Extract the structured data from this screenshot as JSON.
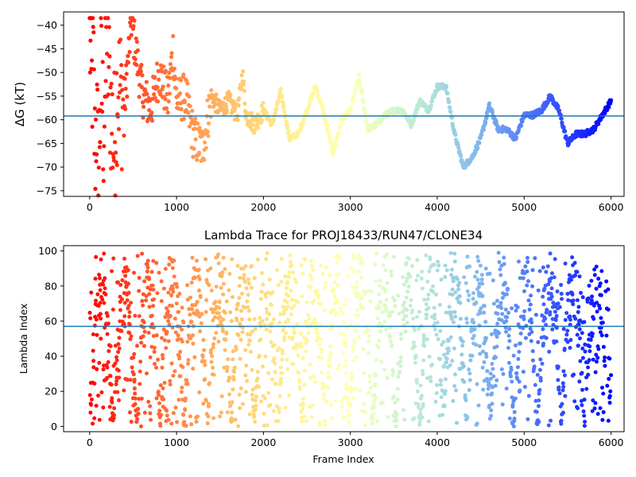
{
  "chart_data": [
    {
      "type": "scatter",
      "title": "",
      "xlabel": "",
      "ylabel": "ΔG (kT)",
      "xlim": [
        -300,
        6150
      ],
      "ylim": [
        -76.2,
        -37.2
      ],
      "xticks": [
        0,
        1000,
        2000,
        3000,
        4000,
        5000,
        6000
      ],
      "yticks": [
        -40,
        -45,
        -50,
        -55,
        -60,
        -65,
        -70,
        -75
      ],
      "hline": -59.2,
      "hline_color": "#1f77b4",
      "colormap": "rainbow (reversed: red at frame 0, violet at frame 6000)",
      "points_approx": [
        [
          0,
          -40
        ],
        [
          20,
          -55
        ],
        [
          40,
          -47
        ],
        [
          60,
          -67
        ],
        [
          80,
          -58
        ],
        [
          100,
          -73
        ],
        [
          130,
          -50
        ],
        [
          160,
          -62
        ],
        [
          200,
          -44
        ],
        [
          240,
          -56
        ],
        [
          280,
          -66
        ],
        [
          320,
          -52
        ],
        [
          400,
          -57
        ],
        [
          480,
          -39
        ],
        [
          600,
          -54
        ],
        [
          700,
          -58
        ],
        [
          800,
          -50
        ],
        [
          900,
          -56
        ],
        [
          960,
          -45
        ],
        [
          1000,
          -56
        ],
        [
          1100,
          -55
        ],
        [
          1200,
          -64
        ],
        [
          1300,
          -66
        ],
        [
          1400,
          -55
        ],
        [
          1500,
          -58
        ],
        [
          1600,
          -56
        ],
        [
          1700,
          -59
        ],
        [
          1760,
          -50
        ],
        [
          1800,
          -59
        ],
        [
          1900,
          -61
        ],
        [
          2000,
          -58
        ],
        [
          2100,
          -61
        ],
        [
          2200,
          -54
        ],
        [
          2300,
          -64
        ],
        [
          2400,
          -63
        ],
        [
          2500,
          -58
        ],
        [
          2600,
          -53
        ],
        [
          2700,
          -59
        ],
        [
          2800,
          -67
        ],
        [
          2900,
          -60
        ],
        [
          3000,
          -58
        ],
        [
          3100,
          -51
        ],
        [
          3200,
          -62
        ],
        [
          3300,
          -61
        ],
        [
          3400,
          -59
        ],
        [
          3500,
          -58
        ],
        [
          3600,
          -58
        ],
        [
          3700,
          -61
        ],
        [
          3800,
          -56
        ],
        [
          3900,
          -58
        ],
        [
          4000,
          -53
        ],
        [
          4100,
          -53
        ],
        [
          4200,
          -63
        ],
        [
          4300,
          -70
        ],
        [
          4400,
          -68
        ],
        [
          4500,
          -64
        ],
        [
          4600,
          -57
        ],
        [
          4700,
          -62
        ],
        [
          4800,
          -62
        ],
        [
          4900,
          -64
        ],
        [
          5000,
          -59
        ],
        [
          5100,
          -59
        ],
        [
          5200,
          -58
        ],
        [
          5300,
          -55
        ],
        [
          5400,
          -58
        ],
        [
          5500,
          -65
        ],
        [
          5600,
          -63
        ],
        [
          5700,
          -63
        ],
        [
          5800,
          -62
        ],
        [
          5900,
          -59
        ],
        [
          6000,
          -56
        ]
      ]
    },
    {
      "type": "scatter",
      "title": "Lambda Trace for PROJ18433/RUN47/CLONE34",
      "xlabel": "Frame Index",
      "ylabel": "Lambda Index",
      "xlim": [
        -300,
        6150
      ],
      "ylim": [
        -3,
        103
      ],
      "xticks": [
        0,
        1000,
        2000,
        3000,
        4000,
        5000,
        6000
      ],
      "yticks": [
        0,
        20,
        40,
        60,
        80,
        100
      ],
      "hline": 57,
      "hline_color": "#1f77b4",
      "colormap": "rainbow (reversed: red at frame 0, violet at frame 6000)",
      "value_range": [
        0,
        99
      ],
      "frame_range": [
        0,
        6000
      ]
    }
  ]
}
